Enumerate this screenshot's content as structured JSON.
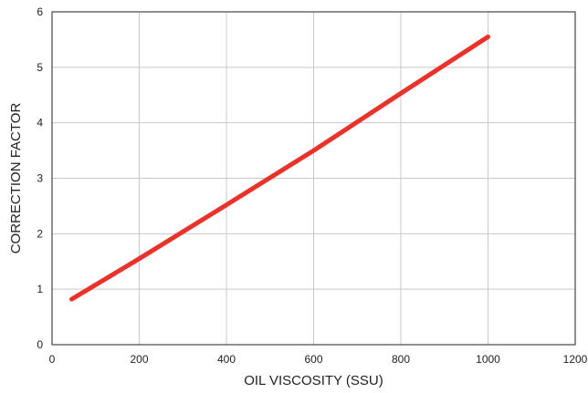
{
  "chart_data": {
    "type": "line",
    "title": "",
    "xlabel": "OIL VISCOSITY (SSU)",
    "ylabel": "CORRECTION FACTOR",
    "xlim": [
      0,
      1200
    ],
    "ylim": [
      0,
      6
    ],
    "x_ticks": [
      "0",
      "200",
      "400",
      "600",
      "800",
      "1000",
      "1200"
    ],
    "y_ticks": [
      "0",
      "1",
      "2",
      "3",
      "4",
      "5",
      "6"
    ],
    "grid": true,
    "series": [
      {
        "color": "#e8322a",
        "x": [
          45,
          200,
          400,
          600,
          800,
          1000
        ],
        "y": [
          0.82,
          1.55,
          2.52,
          3.5,
          4.53,
          5.55
        ]
      }
    ]
  }
}
